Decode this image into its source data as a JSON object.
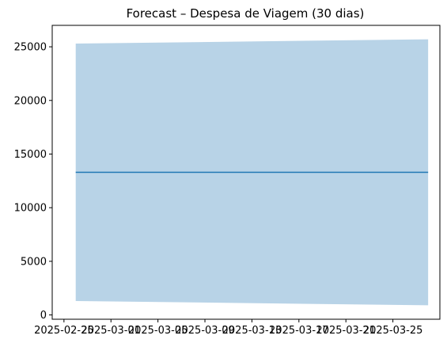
{
  "chart_data": {
    "type": "line",
    "title": "Forecast – Despesa de Viagem (30 dias)",
    "xlabel": "",
    "ylabel": "",
    "x_ticks": [
      "2025-02-25",
      "2025-03-01",
      "2025-03-05",
      "2025-03-09",
      "2025-03-13",
      "2025-03-17",
      "2025-03-21",
      "2025-03-25"
    ],
    "y_ticks": [
      0,
      5000,
      10000,
      15000,
      20000,
      25000
    ],
    "xlim": [
      "2025-02-24",
      "2025-03-29"
    ],
    "ylim": [
      -400,
      27000
    ],
    "grid": false,
    "legend": "none",
    "series": [
      {
        "x": [
          "2025-02-26",
          "2025-03-28"
        ],
        "values": [
          13300,
          13300
        ],
        "upper": [
          25300,
          25700
        ],
        "lower": [
          1300,
          900
        ],
        "line_color": "#1f77b4",
        "band_color": "#b8d3e7"
      }
    ]
  }
}
